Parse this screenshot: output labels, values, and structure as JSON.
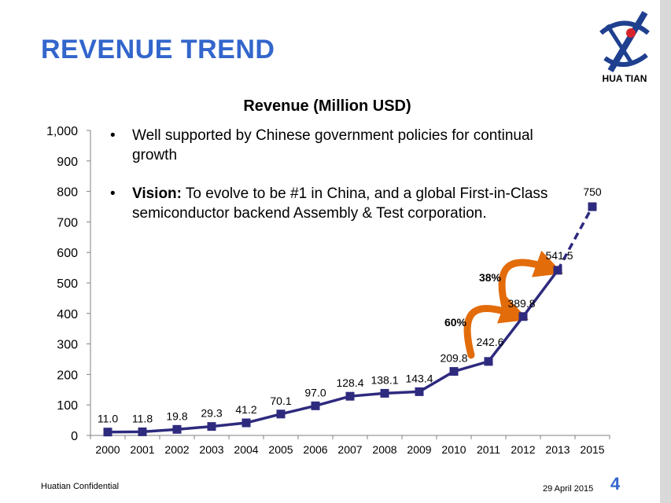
{
  "slide": {
    "title": "REVENUE TREND",
    "logo_text": "HUA TIAN",
    "accent_color": "#3366cc",
    "footer_confidential": "Huatian Confidential",
    "footer_date": "29 April 2015",
    "page_number": "4"
  },
  "bullets": [
    {
      "text": "Well supported by Chinese government policies for continual growth"
    },
    {
      "strong": "Vision:",
      "text": " To evolve to be #1 in China, and a global First-in-Class semiconductor backend Assembly & Test corporation."
    }
  ],
  "chart_data": {
    "type": "line",
    "title": "Revenue (Million USD)",
    "xlabel": "",
    "ylabel": "",
    "categories": [
      "2000",
      "2001",
      "2002",
      "2003",
      "2004",
      "2005",
      "2006",
      "2007",
      "2008",
      "2009",
      "2010",
      "2011",
      "2012",
      "2013",
      "2015"
    ],
    "series": [
      {
        "name": "Revenue",
        "values": [
          11.0,
          11.8,
          19.8,
          29.3,
          41.2,
          70.1,
          97.0,
          128.4,
          138.1,
          143.4,
          209.8,
          242.6,
          389.8,
          541.5,
          750
        ],
        "labels": [
          "11.0",
          "11.8",
          "19.8",
          "29.3",
          "41.2",
          "70.1",
          "97.0",
          "128.4",
          "138.1",
          "143.4",
          "209.8",
          "242.6",
          "389.8",
          "541.5",
          "750"
        ],
        "color": "#2e2a7e",
        "dashed_last_segment": true
      }
    ],
    "ylim": [
      0,
      1000
    ],
    "yticks": [
      0,
      100,
      200,
      300,
      400,
      500,
      600,
      700,
      800,
      900,
      1000
    ],
    "ytick_labels": [
      "0",
      "100",
      "200",
      "300",
      "400",
      "500",
      "600",
      "700",
      "800",
      "900",
      "1,000"
    ],
    "grid": false,
    "annotations": [
      {
        "label": "60%",
        "from_index": 11,
        "to_index": 12,
        "color": "#e36c0a"
      },
      {
        "label": "38%",
        "from_index": 12,
        "to_index": 13,
        "color": "#e36c0a"
      }
    ]
  }
}
